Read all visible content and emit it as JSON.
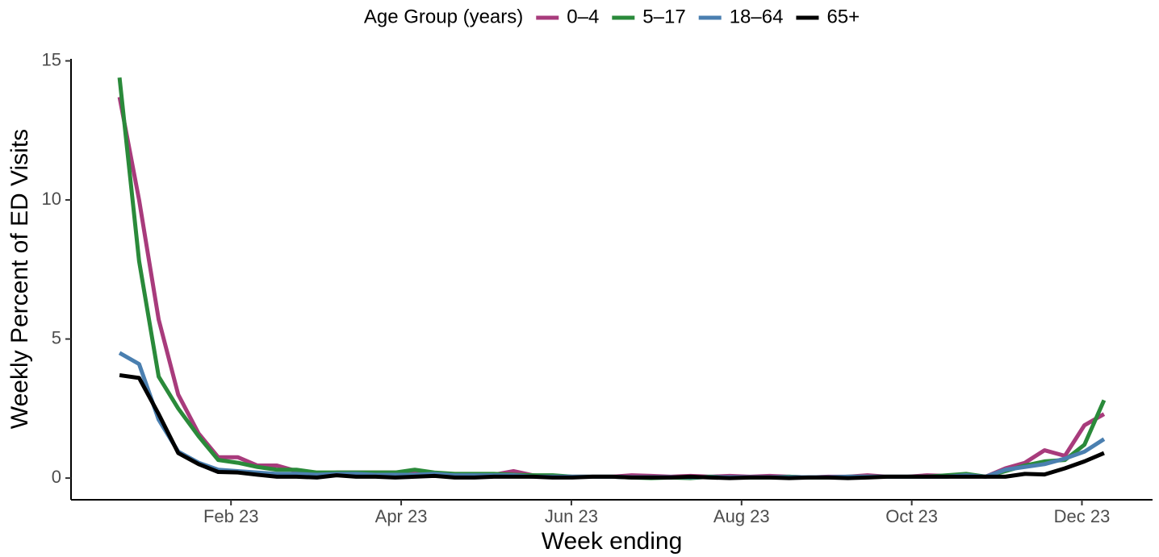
{
  "chart_data": {
    "type": "line",
    "legend_title": "Age Group (years)",
    "x_label": "Week ending",
    "y_label": "Weekly Percent of ED Visits",
    "legend_position": "top",
    "grid": false,
    "x": [
      0.69,
      0.92,
      1.15,
      1.38,
      1.62,
      1.85,
      2.08,
      2.31,
      2.54,
      2.77,
      3.01,
      3.24,
      3.47,
      3.7,
      3.93,
      4.16,
      4.39,
      4.63,
      4.86,
      5.09,
      5.32,
      5.55,
      5.78,
      6.01,
      6.25,
      6.48,
      6.71,
      6.94,
      7.17,
      7.4,
      7.63,
      7.86,
      8.1,
      8.33,
      8.56,
      8.79,
      9.02,
      9.25,
      9.48,
      9.71,
      9.95,
      10.18,
      10.41,
      10.64,
      10.87,
      11.1,
      11.33,
      11.56,
      11.8,
      12.03,
      12.26
    ],
    "xlim": [
      0.12,
      12.83
    ],
    "xticks": [
      {
        "value": 2,
        "label": "Feb 23"
      },
      {
        "value": 4,
        "label": "Apr 23"
      },
      {
        "value": 6,
        "label": "Jun 23"
      },
      {
        "value": 8,
        "label": "Aug 23"
      },
      {
        "value": 10,
        "label": "Oct 23"
      },
      {
        "value": 12,
        "label": "Dec 23"
      }
    ],
    "ylim": [
      -0.78,
      15.45
    ],
    "yticks": [
      0,
      5,
      10,
      15
    ],
    "series": [
      {
        "name": "0–4",
        "color": "#a83b7c",
        "values": [
          13.7,
          10.0,
          5.7,
          3.0,
          1.6,
          0.75,
          0.75,
          0.45,
          0.45,
          0.25,
          0.15,
          0.2,
          0.2,
          0.2,
          0.2,
          0.25,
          0.15,
          0.12,
          0.12,
          0.12,
          0.25,
          0.1,
          0.05,
          0.05,
          0.05,
          0.05,
          0.1,
          0.08,
          0.05,
          0.08,
          0.05,
          0.08,
          0.05,
          0.08,
          0.05,
          0.02,
          0.05,
          0.05,
          0.1,
          0.05,
          0.05,
          0.1,
          0.08,
          0.12,
          0.05,
          0.35,
          0.55,
          1.0,
          0.8,
          1.9,
          2.3
        ]
      },
      {
        "name": "5–17",
        "color": "#2a8a3a",
        "values": [
          14.4,
          7.8,
          3.65,
          2.5,
          1.5,
          0.65,
          0.55,
          0.4,
          0.3,
          0.3,
          0.2,
          0.2,
          0.2,
          0.2,
          0.2,
          0.3,
          0.2,
          0.15,
          0.15,
          0.15,
          0.12,
          0.1,
          0.1,
          0.05,
          0.05,
          0.05,
          0.02,
          0.0,
          0.02,
          0.0,
          0.05,
          0.02,
          0.02,
          0.02,
          0.05,
          0.02,
          0.02,
          0.05,
          0.05,
          0.05,
          0.05,
          0.05,
          0.1,
          0.15,
          0.05,
          0.25,
          0.45,
          0.6,
          0.65,
          1.2,
          2.8
        ]
      },
      {
        "name": "18–64",
        "color": "#4a7fb0",
        "values": [
          4.5,
          4.1,
          2.1,
          0.95,
          0.55,
          0.3,
          0.25,
          0.2,
          0.15,
          0.15,
          0.12,
          0.15,
          0.15,
          0.12,
          0.12,
          0.12,
          0.15,
          0.1,
          0.1,
          0.1,
          0.1,
          0.05,
          0.05,
          0.05,
          0.05,
          0.05,
          0.03,
          0.03,
          0.03,
          0.03,
          0.03,
          0.03,
          0.03,
          0.03,
          0.03,
          0.03,
          0.03,
          0.05,
          0.05,
          0.05,
          0.05,
          0.05,
          0.05,
          0.1,
          0.05,
          0.3,
          0.4,
          0.5,
          0.7,
          0.95,
          1.4
        ]
      },
      {
        "name": "65+",
        "color": "#000000",
        "values": [
          3.7,
          3.6,
          2.3,
          0.9,
          0.5,
          0.22,
          0.2,
          0.12,
          0.05,
          0.05,
          0.02,
          0.1,
          0.05,
          0.05,
          0.02,
          0.05,
          0.08,
          0.02,
          0.02,
          0.05,
          0.05,
          0.05,
          0.02,
          0.02,
          0.05,
          0.05,
          0.02,
          0.02,
          0.02,
          0.05,
          0.02,
          0.0,
          0.02,
          0.02,
          0.0,
          0.02,
          0.02,
          0.0,
          0.02,
          0.05,
          0.05,
          0.05,
          0.05,
          0.05,
          0.05,
          0.05,
          0.15,
          0.13,
          0.35,
          0.6,
          0.9
        ]
      }
    ]
  }
}
